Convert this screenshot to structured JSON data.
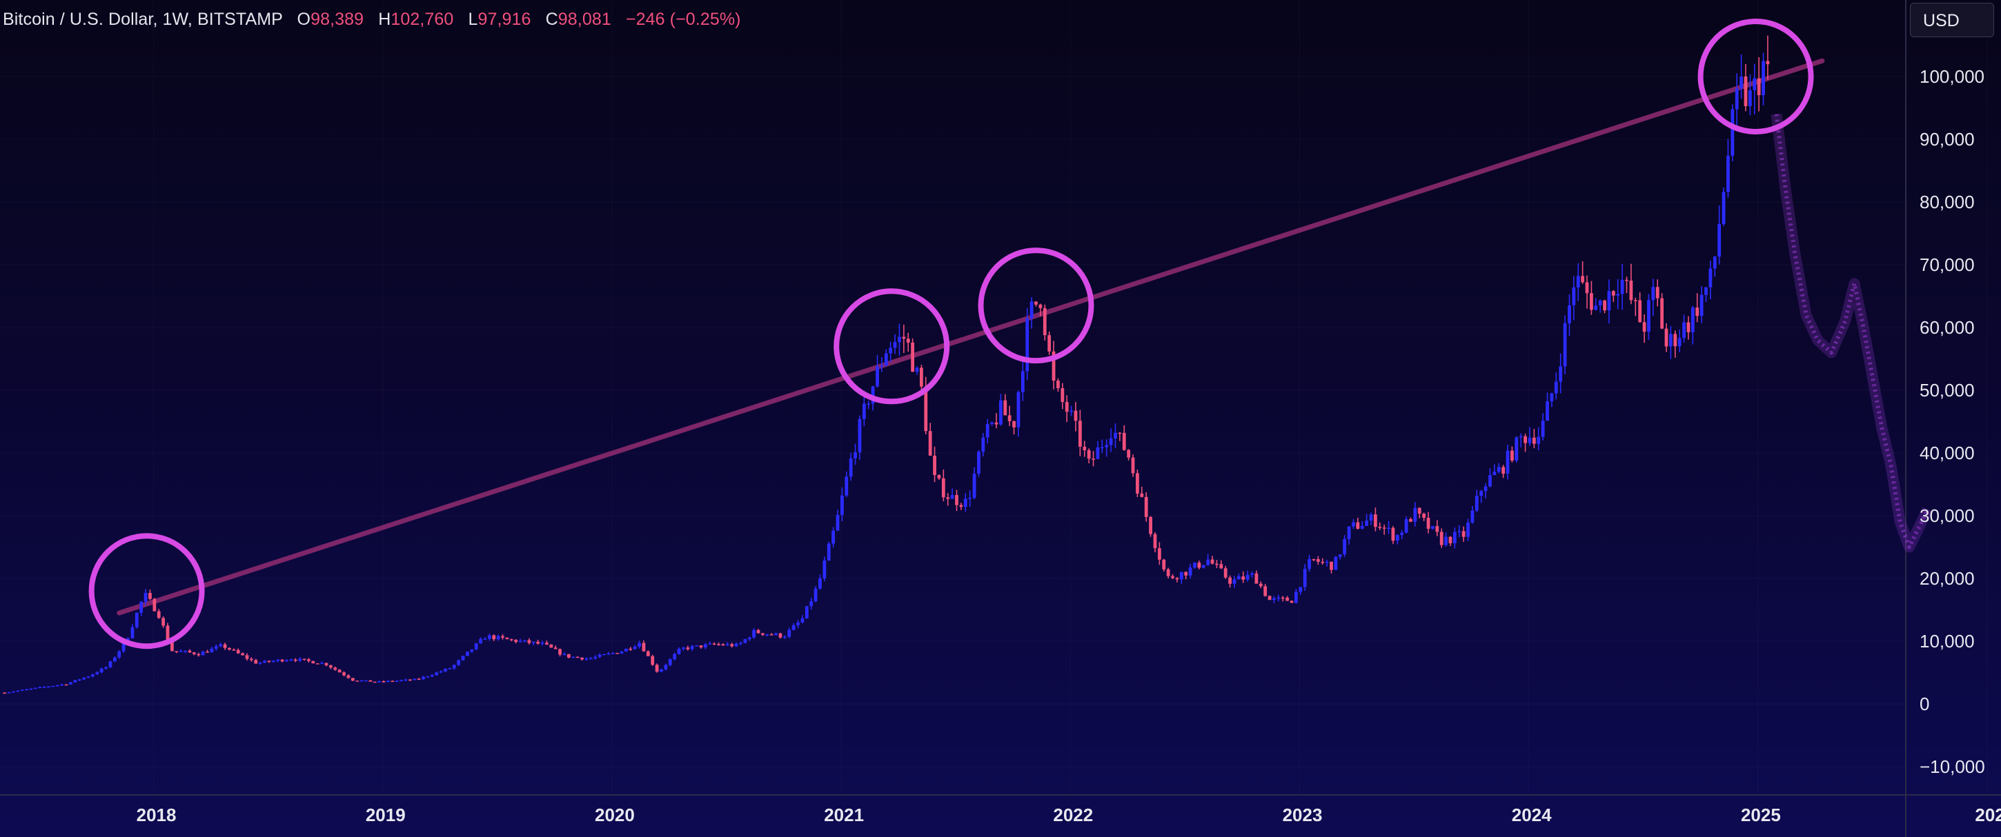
{
  "legend": {
    "symbol": "Bitcoin / U.S. Dollar, 1W, BITSTAMP",
    "open_label": "O",
    "open_value": "98,389",
    "high_label": "H",
    "high_value": "102,760",
    "low_label": "L",
    "low_value": "97,916",
    "close_label": "C",
    "close_value": "98,081",
    "change": "−246 (−0.25%)"
  },
  "currency": "USD",
  "colors": {
    "up_candle": "#2b2bff",
    "down_candle": "#f0507c",
    "trendline": "#8a2a6e",
    "highlight_circle": "#d84ae6",
    "projection": "#9b3ad6",
    "axis_text": "#e8e8f0"
  },
  "chart_data": {
    "type": "candlestick",
    "instrument": "Bitcoin / U.S. Dollar",
    "interval": "1W",
    "exchange": "BITSTAMP",
    "x_ticks": [
      "2018",
      "2019",
      "2020",
      "2021",
      "2022",
      "2023",
      "2024",
      "2025",
      "202"
    ],
    "y_ticks": [
      "100,000",
      "90,000",
      "80,000",
      "70,000",
      "60,000",
      "50,000",
      "40,000",
      "30,000",
      "20,000",
      "10,000",
      "0",
      "−10,000"
    ],
    "y_tick_values": [
      100000,
      90000,
      80000,
      70000,
      60000,
      50000,
      40000,
      30000,
      20000,
      10000,
      0,
      -10000
    ],
    "ylim": [
      -12000,
      108000
    ],
    "xlim": [
      2017.33,
      2026.06
    ],
    "price_series": [
      [
        2017.35,
        1800
      ],
      [
        2017.5,
        2600
      ],
      [
        2017.62,
        3200
      ],
      [
        2017.72,
        4500
      ],
      [
        2017.8,
        6000
      ],
      [
        2017.88,
        10000
      ],
      [
        2017.96,
        17500
      ],
      [
        2018.02,
        14500
      ],
      [
        2018.08,
        8500
      ],
      [
        2018.2,
        8000
      ],
      [
        2018.3,
        9300
      ],
      [
        2018.45,
        6500
      ],
      [
        2018.6,
        7200
      ],
      [
        2018.75,
        6400
      ],
      [
        2018.87,
        3800
      ],
      [
        2018.98,
        3500
      ],
      [
        2019.15,
        3900
      ],
      [
        2019.3,
        5800
      ],
      [
        2019.45,
        10800
      ],
      [
        2019.55,
        10200
      ],
      [
        2019.7,
        9500
      ],
      [
        2019.8,
        7600
      ],
      [
        2019.9,
        7200
      ],
      [
        2020.05,
        8500
      ],
      [
        2020.12,
        9800
      ],
      [
        2020.2,
        5000
      ],
      [
        2020.3,
        8800
      ],
      [
        2020.45,
        9500
      ],
      [
        2020.55,
        9300
      ],
      [
        2020.62,
        11500
      ],
      [
        2020.75,
        10800
      ],
      [
        2020.83,
        13500
      ],
      [
        2020.9,
        19000
      ],
      [
        2020.98,
        29000
      ],
      [
        2021.05,
        40000
      ],
      [
        2021.12,
        49000
      ],
      [
        2021.2,
        57000
      ],
      [
        2021.28,
        58500
      ],
      [
        2021.35,
        50000
      ],
      [
        2021.4,
        36000
      ],
      [
        2021.47,
        33000
      ],
      [
        2021.55,
        32000
      ],
      [
        2021.62,
        42000
      ],
      [
        2021.7,
        47000
      ],
      [
        2021.75,
        44000
      ],
      [
        2021.82,
        62000
      ],
      [
        2021.87,
        65000
      ],
      [
        2021.93,
        50000
      ],
      [
        2022.0,
        46000
      ],
      [
        2022.08,
        38000
      ],
      [
        2022.18,
        44000
      ],
      [
        2022.25,
        40000
      ],
      [
        2022.33,
        30000
      ],
      [
        2022.42,
        20000
      ],
      [
        2022.5,
        21000
      ],
      [
        2022.6,
        23000
      ],
      [
        2022.7,
        19500
      ],
      [
        2022.8,
        20500
      ],
      [
        2022.87,
        16500
      ],
      [
        2022.97,
        16600
      ],
      [
        2023.05,
        23000
      ],
      [
        2023.15,
        22000
      ],
      [
        2023.22,
        28000
      ],
      [
        2023.32,
        29500
      ],
      [
        2023.42,
        26500
      ],
      [
        2023.5,
        30500
      ],
      [
        2023.62,
        26000
      ],
      [
        2023.72,
        27000
      ],
      [
        2023.8,
        35000
      ],
      [
        2023.88,
        37500
      ],
      [
        2023.97,
        42500
      ],
      [
        2024.05,
        43000
      ],
      [
        2024.12,
        52000
      ],
      [
        2024.2,
        68000
      ],
      [
        2024.3,
        63000
      ],
      [
        2024.4,
        68000
      ],
      [
        2024.5,
        60000
      ],
      [
        2024.55,
        66000
      ],
      [
        2024.6,
        57000
      ],
      [
        2024.7,
        61000
      ],
      [
        2024.8,
        68000
      ],
      [
        2024.87,
        88000
      ],
      [
        2024.92,
        98000
      ],
      [
        2024.97,
        96000
      ],
      [
        2025.02,
        102000
      ],
      [
        2025.06,
        98081
      ]
    ],
    "trendline": {
      "from": [
        2017.85,
        14500
      ],
      "to": [
        2025.28,
        102500
      ]
    },
    "highlighted_peaks": [
      [
        2017.97,
        18000
      ],
      [
        2021.22,
        57000
      ],
      [
        2021.85,
        63500
      ],
      [
        2024.99,
        100000
      ]
    ],
    "projection_series": [
      [
        2025.08,
        94000
      ],
      [
        2025.12,
        82000
      ],
      [
        2025.16,
        72000
      ],
      [
        2025.21,
        62000
      ],
      [
        2025.26,
        58000
      ],
      [
        2025.32,
        56000
      ],
      [
        2025.38,
        61000
      ],
      [
        2025.42,
        67000
      ],
      [
        2025.46,
        60000
      ],
      [
        2025.5,
        52000
      ],
      [
        2025.54,
        44000
      ],
      [
        2025.58,
        38000
      ],
      [
        2025.62,
        29000
      ],
      [
        2025.66,
        25000
      ],
      [
        2025.7,
        28000
      ],
      [
        2025.74,
        31000
      ]
    ]
  }
}
